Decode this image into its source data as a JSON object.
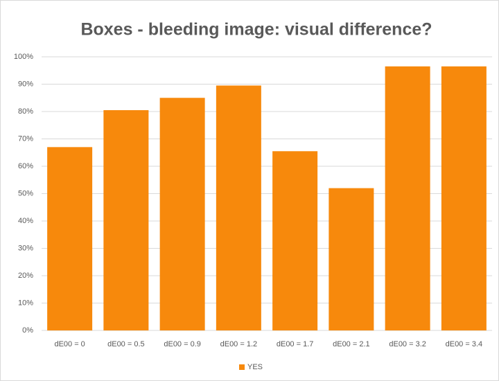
{
  "chart_data": {
    "type": "bar",
    "title": "Boxes - bleeding image: visual difference?",
    "categories": [
      "dE00 = 0",
      "dE00 = 0.5",
      "dE00 = 0.9",
      "dE00 = 1.2",
      "dE00 = 1.7",
      "dE00 = 2.1",
      "dE00 = 3.2",
      "dE00 = 3.4"
    ],
    "series": [
      {
        "name": "YES",
        "color": "#f7890c",
        "values": [
          67,
          80.5,
          85,
          89.5,
          65.5,
          52,
          96.5,
          96.5
        ]
      }
    ],
    "ylim": [
      0,
      100
    ],
    "yticks": [
      {
        "value": 0,
        "label": "0%"
      },
      {
        "value": 10,
        "label": "10%"
      },
      {
        "value": 20,
        "label": "20%"
      },
      {
        "value": 30,
        "label": "30%"
      },
      {
        "value": 40,
        "label": "40%"
      },
      {
        "value": 50,
        "label": "50%"
      },
      {
        "value": 60,
        "label": "60%"
      },
      {
        "value": 70,
        "label": "70%"
      },
      {
        "value": 80,
        "label": "80%"
      },
      {
        "value": 90,
        "label": "90%"
      },
      {
        "value": 100,
        "label": "100%"
      }
    ],
    "grid": true,
    "legend": "bottom"
  }
}
